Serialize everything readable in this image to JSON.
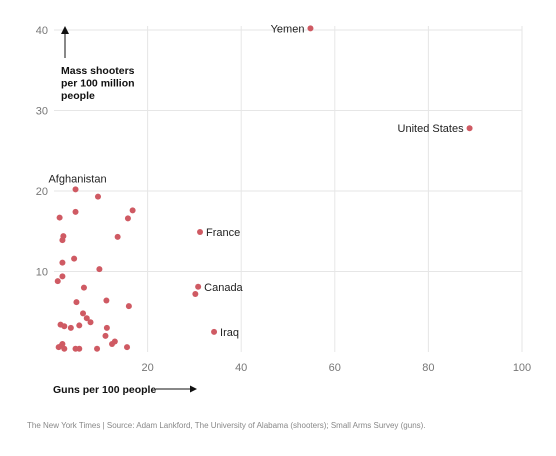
{
  "chart_data": {
    "type": "scatter",
    "title": "",
    "xlabel": "Guns per 100 people",
    "ylabel": "Mass shooters per 100 million people",
    "xlim": [
      0,
      100
    ],
    "ylim": [
      0,
      40
    ],
    "xticks": [
      "20",
      "40",
      "60",
      "80",
      "100"
    ],
    "yticks": [
      "10",
      "20",
      "30",
      "40"
    ],
    "grid": true,
    "point_color": "#cf5a63",
    "labeled_points": [
      {
        "label": "Yemen",
        "x": 54.8,
        "y": 40.2,
        "side": "left"
      },
      {
        "label": "United States",
        "x": 88.8,
        "y": 27.8,
        "side": "left"
      },
      {
        "label": "Afghanistan",
        "x": 4.6,
        "y": 20.2,
        "side": "above"
      },
      {
        "label": "France",
        "x": 31.2,
        "y": 14.9,
        "side": "right"
      },
      {
        "label": "Canada",
        "x": 30.8,
        "y": 8.1,
        "side": "right"
      },
      {
        "label": "Iraq",
        "x": 34.2,
        "y": 2.5,
        "side": "right"
      }
    ],
    "points": [
      {
        "x": 9.4,
        "y": 19.3
      },
      {
        "x": 16.8,
        "y": 17.6
      },
      {
        "x": 4.6,
        "y": 17.4
      },
      {
        "x": 1.2,
        "y": 16.7
      },
      {
        "x": 15.8,
        "y": 16.6
      },
      {
        "x": 13.6,
        "y": 14.3
      },
      {
        "x": 2.0,
        "y": 14.4
      },
      {
        "x": 1.8,
        "y": 13.9
      },
      {
        "x": 4.3,
        "y": 11.6
      },
      {
        "x": 1.8,
        "y": 11.1
      },
      {
        "x": 9.7,
        "y": 10.3
      },
      {
        "x": 1.8,
        "y": 9.4
      },
      {
        "x": 0.8,
        "y": 8.8
      },
      {
        "x": 6.4,
        "y": 8.0
      },
      {
        "x": 30.2,
        "y": 7.2
      },
      {
        "x": 4.8,
        "y": 6.2
      },
      {
        "x": 11.2,
        "y": 6.4
      },
      {
        "x": 16.0,
        "y": 5.7
      },
      {
        "x": 6.2,
        "y": 4.8
      },
      {
        "x": 7.0,
        "y": 4.2
      },
      {
        "x": 7.8,
        "y": 3.7
      },
      {
        "x": 1.4,
        "y": 3.4
      },
      {
        "x": 2.2,
        "y": 3.2
      },
      {
        "x": 5.4,
        "y": 3.3
      },
      {
        "x": 3.6,
        "y": 3.0
      },
      {
        "x": 11.3,
        "y": 3.0
      },
      {
        "x": 11.0,
        "y": 2.0
      },
      {
        "x": 12.4,
        "y": 1.0
      },
      {
        "x": 13.0,
        "y": 1.3
      },
      {
        "x": 1.8,
        "y": 1.0
      },
      {
        "x": 1.0,
        "y": 0.6
      },
      {
        "x": 2.2,
        "y": 0.4
      },
      {
        "x": 4.6,
        "y": 0.4
      },
      {
        "x": 5.4,
        "y": 0.4
      },
      {
        "x": 9.2,
        "y": 0.4
      },
      {
        "x": 15.6,
        "y": 0.6
      },
      {
        "x": 1.6,
        "y": 0.8
      }
    ]
  },
  "source_text": "The New York Times  |  Source: Adam Lankford, The University of Alabama (shooters); Small Arms Survey (guns)."
}
